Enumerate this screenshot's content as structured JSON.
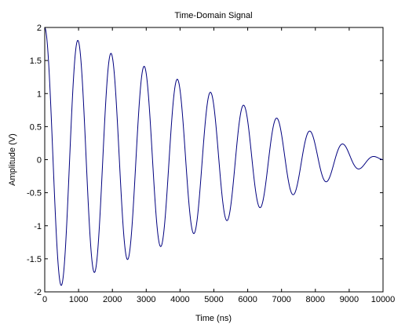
{
  "chart_data": {
    "type": "line",
    "title": "Time-Domain Signal",
    "xlabel": "Time (ns)",
    "ylabel": "Amplitude (V)",
    "xlim": [
      0,
      10000
    ],
    "ylim": [
      -2,
      2
    ],
    "xticks": [
      "0",
      "1000",
      "2000",
      "3000",
      "4000",
      "5000",
      "6000",
      "7000",
      "8000",
      "9000",
      "10000"
    ],
    "yticks": [
      "-2",
      "-1.5",
      "-1",
      "-0.5",
      "0",
      "0.5",
      "1",
      "1.5",
      "2"
    ],
    "grid": false,
    "line_color": "#00007f",
    "series": [
      {
        "function": "A(t) * cos(2*pi*f*t), A(t) = 2*(1 - t/10000)",
        "x_start": 0,
        "x_end": 10000,
        "frequency_per_ns": 0.00102,
        "amplitude_start": 2,
        "amplitude_end": 0,
        "peaks": [
          {
            "x": 0,
            "y": 2.0
          },
          {
            "x": 980,
            "y": 1.98
          },
          {
            "x": 1960,
            "y": 1.9
          },
          {
            "x": 2940,
            "y": 1.79
          },
          {
            "x": 3920,
            "y": 1.62
          },
          {
            "x": 4900,
            "y": 1.43
          },
          {
            "x": 5880,
            "y": 1.2
          },
          {
            "x": 6860,
            "y": 0.95
          },
          {
            "x": 7840,
            "y": 0.67
          },
          {
            "x": 8820,
            "y": 0.37
          },
          {
            "x": 9600,
            "y": 0.08
          }
        ],
        "troughs": [
          {
            "x": 490,
            "y": -2.0
          },
          {
            "x": 1470,
            "y": -1.94
          },
          {
            "x": 2450,
            "y": -1.85
          },
          {
            "x": 3430,
            "y": -1.71
          },
          {
            "x": 4410,
            "y": -1.53
          },
          {
            "x": 5390,
            "y": -1.32
          },
          {
            "x": 6370,
            "y": -1.08
          },
          {
            "x": 7350,
            "y": -0.81
          },
          {
            "x": 8330,
            "y": -0.52
          },
          {
            "x": 9310,
            "y": -0.22
          }
        ]
      }
    ]
  }
}
